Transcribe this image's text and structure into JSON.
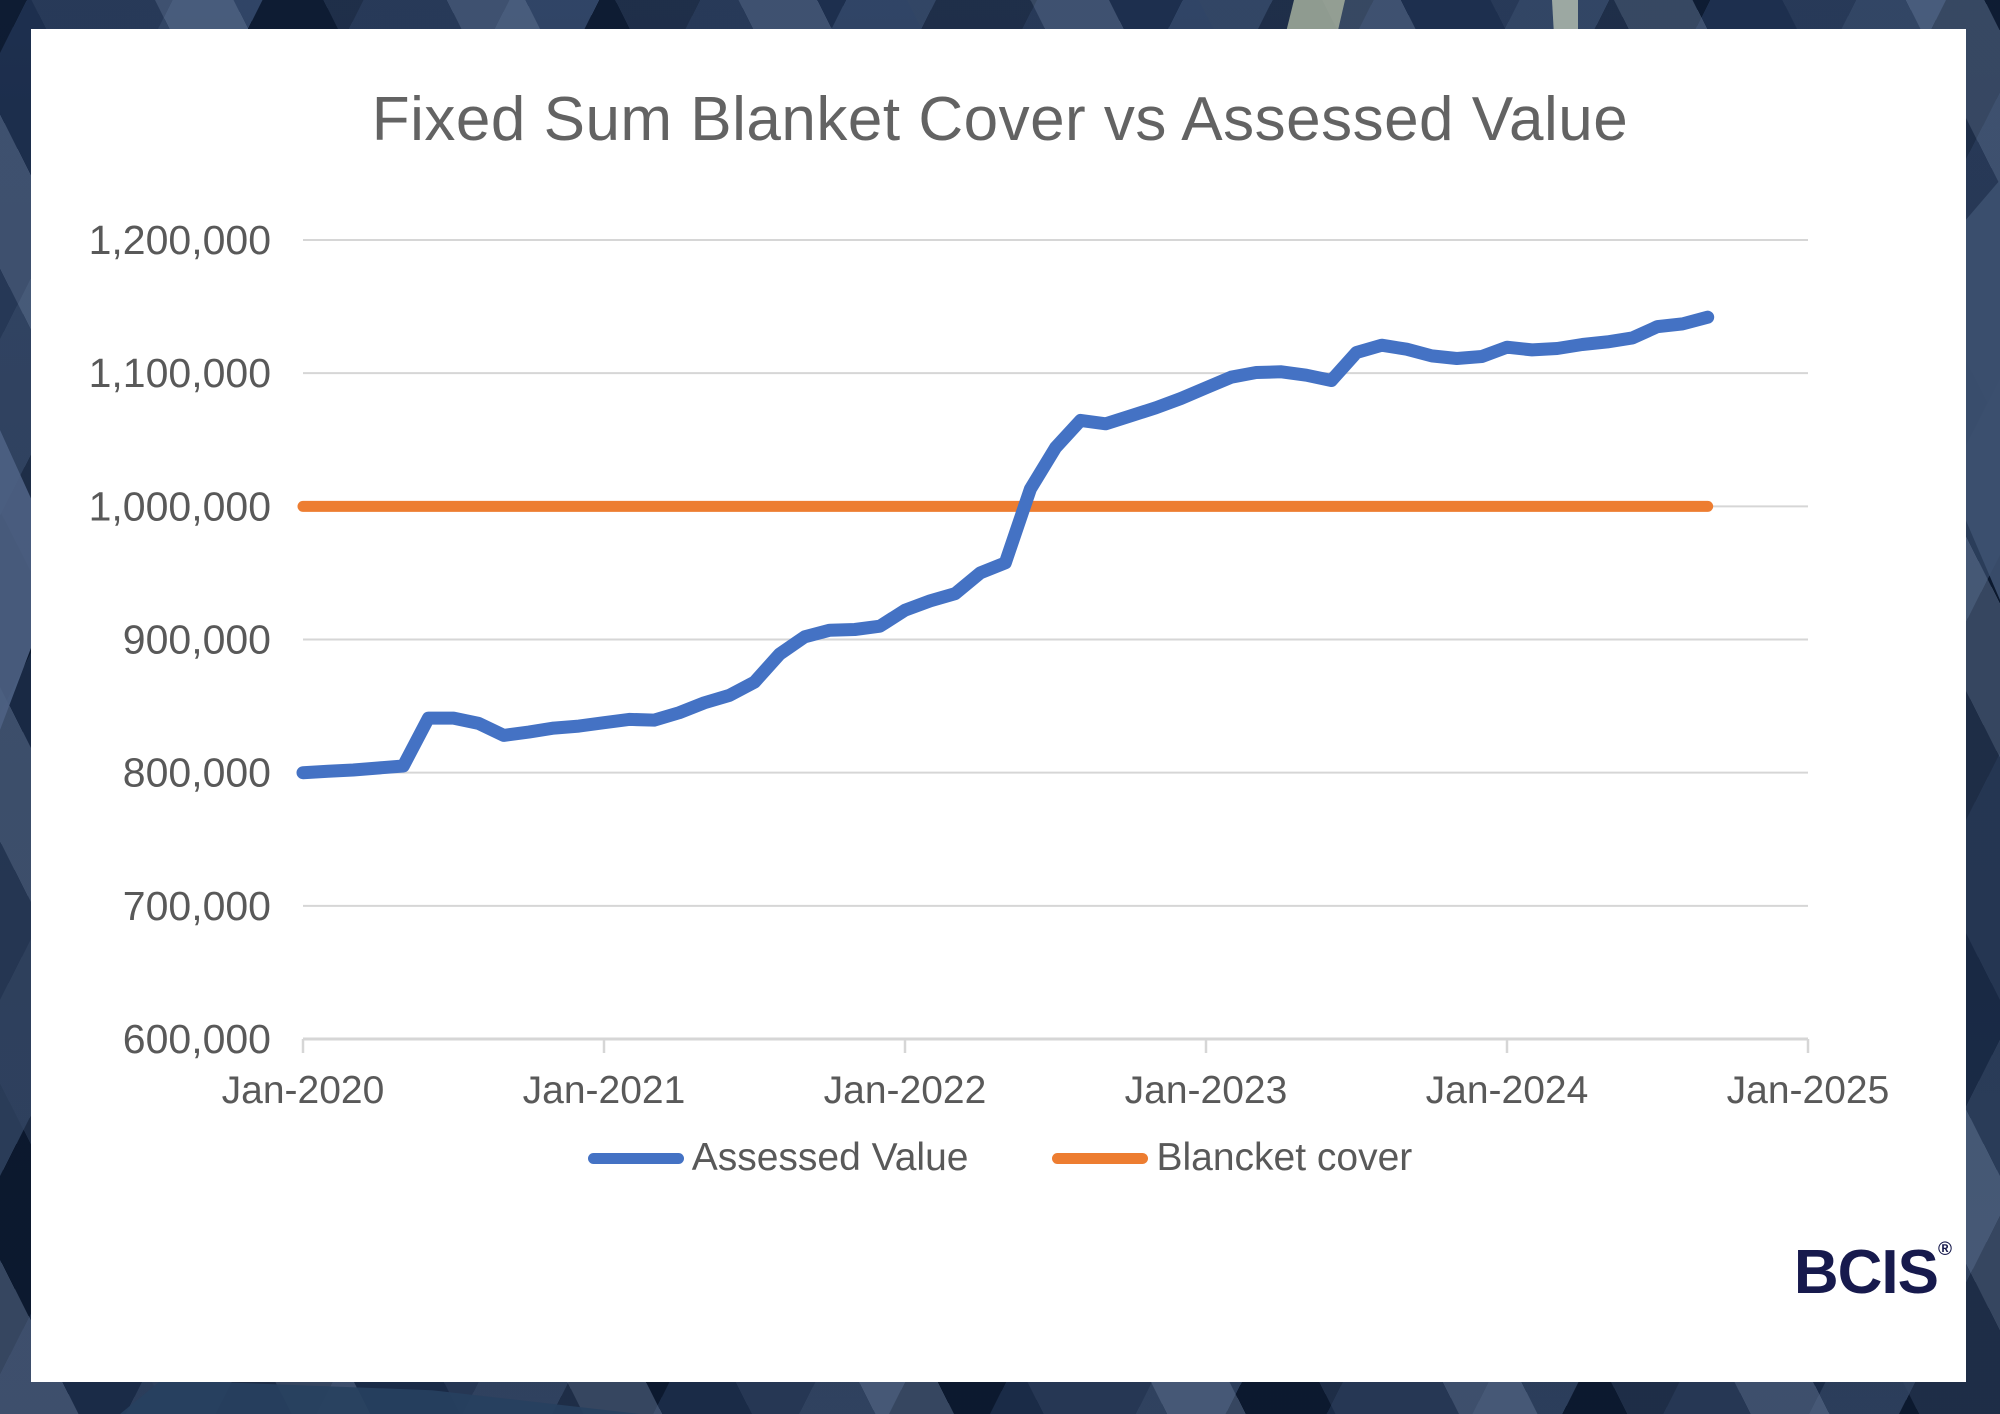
{
  "page": {
    "border_base_color": "#16263F",
    "card_color": "#FFFFFF"
  },
  "chart_data": {
    "type": "line",
    "title": "Fixed Sum Blanket Cover vs Assessed Value",
    "title_color": "#636363",
    "grid": true,
    "legend_position": "bottom",
    "ylim": [
      600000,
      1200000
    ],
    "y_tick_step": 100000,
    "y_tick_labels": [
      "600,000",
      "700,000",
      "800,000",
      "900,000",
      "1,000,000",
      "1,100,000",
      "1,200,000"
    ],
    "x_axis_total_months": 60,
    "x_tick_month_indices": [
      0,
      12,
      24,
      36,
      48,
      60
    ],
    "x_tick_labels": [
      "Jan-2020",
      "Jan-2021",
      "Jan-2022",
      "Jan-2023",
      "Jan-2024",
      "Jan-2025"
    ],
    "months": [
      "Jan-2020",
      "Feb-2020",
      "Mar-2020",
      "Apr-2020",
      "May-2020",
      "Jun-2020",
      "Jul-2020",
      "Aug-2020",
      "Sep-2020",
      "Oct-2020",
      "Nov-2020",
      "Dec-2020",
      "Jan-2021",
      "Feb-2021",
      "Mar-2021",
      "Apr-2021",
      "May-2021",
      "Jun-2021",
      "Jul-2021",
      "Aug-2021",
      "Sep-2021",
      "Oct-2021",
      "Nov-2021",
      "Dec-2021",
      "Jan-2022",
      "Feb-2022",
      "Mar-2022",
      "Apr-2022",
      "May-2022",
      "Jun-2022",
      "Jul-2022",
      "Aug-2022",
      "Sep-2022",
      "Oct-2022",
      "Nov-2022",
      "Dec-2022",
      "Jan-2023",
      "Feb-2023",
      "Mar-2023",
      "Apr-2023",
      "May-2023",
      "Jun-2023",
      "Jul-2023",
      "Aug-2023",
      "Sep-2023",
      "Oct-2023",
      "Nov-2023",
      "Dec-2023",
      "Jan-2024",
      "Feb-2024",
      "Mar-2024",
      "Apr-2024",
      "May-2024",
      "Jun-2024",
      "Jul-2024",
      "Aug-2024",
      "Sep-2024"
    ],
    "series": [
      {
        "name": "Assessed Value",
        "color": "#4472C4",
        "values": [
          800000,
          801000,
          802000,
          803500,
          805000,
          841000,
          841000,
          837000,
          828000,
          830500,
          833500,
          835000,
          837500,
          840000,
          839500,
          845000,
          852500,
          858000,
          868000,
          889000,
          902000,
          907000,
          907500,
          910000,
          922000,
          929000,
          934500,
          950000,
          957500,
          1013000,
          1044000,
          1064500,
          1062000,
          1068000,
          1074000,
          1081000,
          1089000,
          1097000,
          1100500,
          1101000,
          1098500,
          1094500,
          1115500,
          1121000,
          1118000,
          1113000,
          1111000,
          1112500,
          1119500,
          1117500,
          1118500,
          1121500,
          1123500,
          1126500,
          1135000,
          1137000,
          1142000
        ]
      },
      {
        "name": "Blancket cover",
        "color": "#ED7D31",
        "constant_value": 1000000,
        "values": [
          1000000,
          1000000,
          1000000,
          1000000,
          1000000,
          1000000,
          1000000,
          1000000,
          1000000,
          1000000,
          1000000,
          1000000,
          1000000,
          1000000,
          1000000,
          1000000,
          1000000,
          1000000,
          1000000,
          1000000,
          1000000,
          1000000,
          1000000,
          1000000,
          1000000,
          1000000,
          1000000,
          1000000,
          1000000,
          1000000,
          1000000,
          1000000,
          1000000,
          1000000,
          1000000,
          1000000,
          1000000,
          1000000,
          1000000,
          1000000,
          1000000,
          1000000,
          1000000,
          1000000,
          1000000,
          1000000,
          1000000,
          1000000,
          1000000,
          1000000,
          1000000,
          1000000,
          1000000,
          1000000,
          1000000,
          1000000,
          1000000
        ]
      }
    ],
    "axis_color": "#D6D6D6",
    "tick_label_color": "#595959"
  },
  "legend": {
    "items": [
      {
        "label": "Assessed Value",
        "color": "#4472C4"
      },
      {
        "label": "Blancket cover",
        "color": "#ED7D31"
      }
    ]
  },
  "logo": {
    "text": "BCIS",
    "registered": "®"
  }
}
